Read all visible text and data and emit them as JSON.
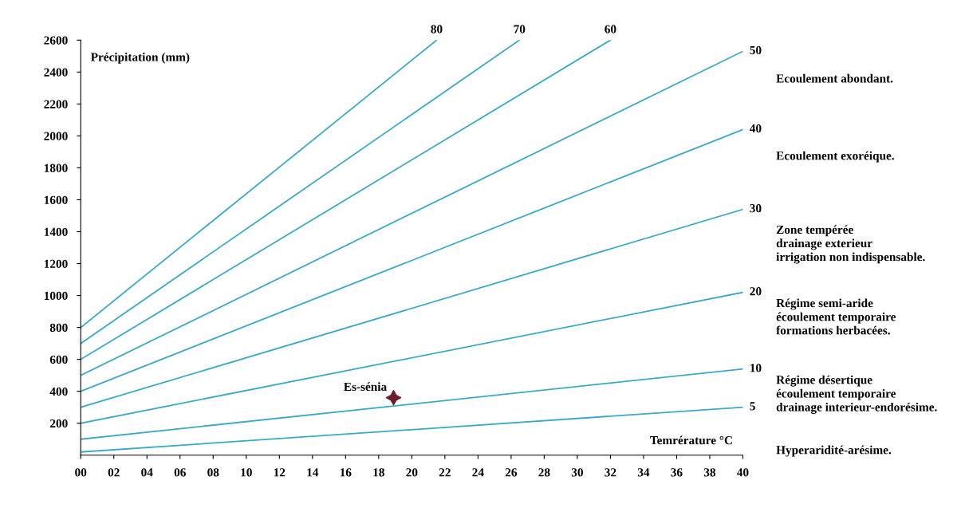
{
  "chart_data": {
    "type": "line",
    "xlabel": "Temrérature °C",
    "ylabel": "Précipitation (mm)",
    "xlim": [
      0,
      40
    ],
    "ylim": [
      0,
      2600
    ],
    "xticks": [
      {
        "value": 0,
        "label": "00"
      },
      {
        "value": 2,
        "label": "02"
      },
      {
        "value": 4,
        "label": "04"
      },
      {
        "value": 6,
        "label": "06"
      },
      {
        "value": 8,
        "label": "08"
      },
      10,
      12,
      14,
      16,
      18,
      20,
      22,
      24,
      26,
      28,
      30,
      32,
      34,
      36,
      38,
      40
    ],
    "yticks": [
      200,
      400,
      600,
      800,
      1000,
      1200,
      1400,
      1600,
      1800,
      2000,
      2200,
      2400,
      2600
    ],
    "grid": false,
    "legend": false,
    "line_style": "solid",
    "series": [
      {
        "name": "5",
        "color": "#3aa9c6",
        "x": [
          0,
          40
        ],
        "values": [
          20,
          300
        ]
      },
      {
        "name": "10",
        "color": "#3aa9c6",
        "x": [
          0,
          40
        ],
        "values": [
          100,
          540
        ]
      },
      {
        "name": "20",
        "color": "#3aa9c6",
        "x": [
          0,
          40
        ],
        "values": [
          200,
          1020
        ]
      },
      {
        "name": "30",
        "color": "#3aa9c6",
        "x": [
          0,
          40
        ],
        "values": [
          300,
          1540
        ]
      },
      {
        "name": "40",
        "color": "#3aa9c6",
        "x": [
          0,
          40
        ],
        "values": [
          400,
          2040
        ]
      },
      {
        "name": "50",
        "color": "#3aa9c6",
        "x": [
          0,
          40
        ],
        "values": [
          500,
          2530
        ]
      },
      {
        "name": "60",
        "color": "#3aa9c6",
        "x": [
          0,
          32
        ],
        "values": [
          600,
          2600
        ]
      },
      {
        "name": "70",
        "color": "#3aa9c6",
        "x": [
          0,
          26.5
        ],
        "values": [
          700,
          2600
        ]
      },
      {
        "name": "80",
        "color": "#3aa9c6",
        "x": [
          0,
          21.5
        ],
        "values": [
          800,
          2600
        ]
      },
      {
        "name": "Es-sénia",
        "type": "scatter",
        "marker": "star",
        "color": "#6b1f2a",
        "x": [
          18.9
        ],
        "values": [
          360
        ]
      }
    ],
    "annotations": [
      "Ecoulement abondant.",
      "Ecoulement exoréique.",
      "Zone tempérée\ndrainage exterieur\nirrigation non indispensable.",
      "Régime semi-aride\nécoulement temporaire\nformations herbacées.",
      "Régime désertique\nécoulement temporaire\ndrainage interieur-endorésime.",
      "Hyperaridité-arésime."
    ]
  }
}
